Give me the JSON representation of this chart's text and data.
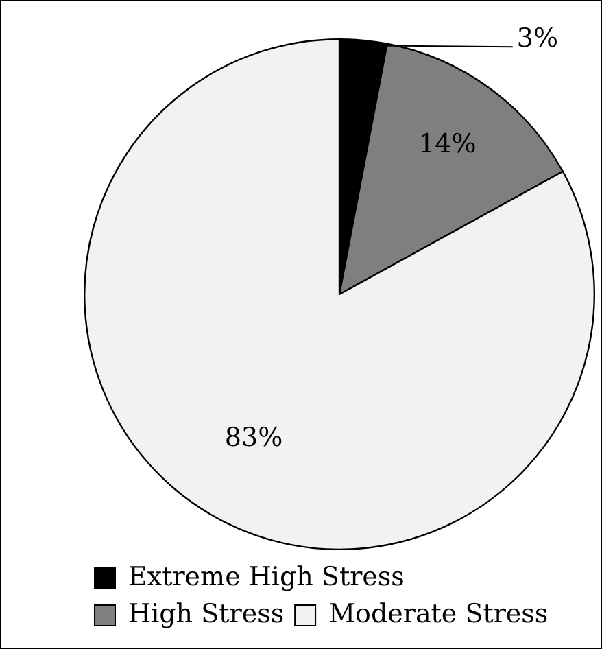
{
  "chart_data": {
    "type": "pie",
    "categories": [
      "Extreme High Stress",
      "High Stress",
      "Moderate Stress"
    ],
    "values": [
      3,
      14,
      83
    ],
    "colors": [
      "#000000",
      "#7f7f7f",
      "#f2f2f2"
    ],
    "value_labels": [
      "3%",
      "14%",
      "83%"
    ],
    "legend": "bottom"
  }
}
